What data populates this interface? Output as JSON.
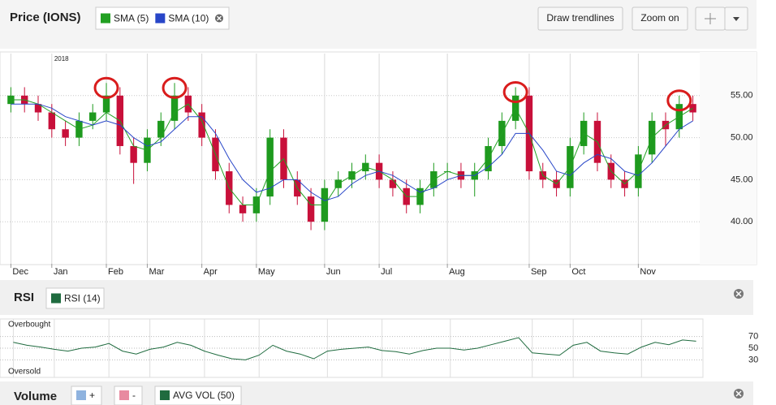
{
  "chart_data": [
    {
      "type": "candlestick",
      "title": "Price (IONS)",
      "year_label": "2018",
      "x": [
        0,
        1,
        2,
        3,
        4,
        5,
        6,
        7,
        8,
        9,
        10,
        11,
        12,
        13,
        14,
        15,
        16,
        17,
        18,
        19,
        20,
        21,
        22,
        23,
        24,
        25,
        26,
        27,
        28,
        29,
        30,
        31,
        32,
        33,
        34,
        35,
        36,
        37,
        38,
        39,
        40,
        41,
        42,
        43,
        44,
        45,
        46,
        47,
        48,
        49,
        50
      ],
      "open": [
        54,
        55,
        54,
        53,
        51,
        50,
        52,
        53,
        55,
        49,
        47,
        50,
        52,
        55,
        53,
        50,
        46,
        42,
        41,
        43,
        50,
        45,
        43,
        40,
        44,
        45,
        46,
        47,
        45,
        44,
        42,
        44,
        46,
        46,
        45,
        46,
        49,
        52,
        55,
        46,
        45,
        44,
        49,
        52,
        47,
        45,
        44,
        48,
        52,
        51,
        54
      ],
      "high": [
        56,
        56,
        55,
        54,
        52,
        53,
        54,
        56.5,
        56,
        50,
        51,
        53,
        56.5,
        56,
        54,
        51,
        47,
        43,
        44,
        51,
        51,
        46,
        44,
        45,
        46,
        47,
        48,
        48,
        46,
        45,
        45,
        47,
        47,
        47,
        47,
        50,
        53,
        56,
        56,
        47,
        46,
        50,
        53,
        53,
        48,
        46,
        49,
        53,
        53,
        55,
        55
      ],
      "low": [
        53,
        53,
        52,
        50,
        49,
        49,
        51,
        52,
        48,
        44.5,
        46,
        49,
        51,
        52,
        49,
        45,
        41,
        40,
        40,
        42,
        44,
        42,
        39,
        39,
        43,
        44,
        45,
        44,
        43,
        41,
        41,
        43,
        45,
        44,
        43,
        45,
        48,
        51,
        45,
        44,
        43,
        43,
        48,
        46,
        44,
        43,
        43,
        47,
        49,
        50,
        52
      ],
      "close": [
        55,
        54,
        53,
        51,
        50,
        52,
        53,
        55,
        49,
        47,
        50,
        52,
        55,
        53,
        50,
        46,
        42,
        41,
        43,
        50,
        45,
        43,
        40,
        44,
        45,
        46,
        47,
        45,
        44,
        42,
        44,
        46,
        46,
        45,
        46,
        49,
        52,
        55,
        46,
        45,
        44,
        49,
        52,
        47,
        45,
        44,
        48,
        52,
        51,
        54,
        53
      ],
      "up_color": "#1e9a1e",
      "down_color": "#c8103a",
      "series": [
        {
          "name": "SMA (5)",
          "color": "#22a022",
          "values": [
            54.5,
            54.5,
            54,
            53,
            52,
            51,
            51.5,
            53,
            52,
            49,
            48.5,
            50,
            53,
            54,
            52,
            48,
            44,
            42,
            42,
            46,
            47.5,
            44,
            42,
            42,
            44.5,
            45.5,
            46.5,
            46,
            45,
            43,
            43,
            45,
            46,
            45.5,
            45.5,
            47.5,
            50.5,
            53.5,
            50.5,
            45.5,
            44.5,
            46.5,
            50.5,
            49.5,
            46,
            44.5,
            46,
            50,
            51.5,
            52.5,
            53.5
          ]
        },
        {
          "name": "SMA (10)",
          "color": "#2846c8",
          "values": [
            54,
            54,
            54,
            53.5,
            52.5,
            52,
            51.5,
            52,
            51.5,
            50,
            49,
            49.5,
            51,
            52.5,
            52.5,
            50.5,
            47.5,
            45,
            43.5,
            44,
            45,
            45,
            43.5,
            42.5,
            43,
            44.5,
            45.5,
            46,
            45.5,
            44.5,
            43.5,
            44,
            45,
            45.5,
            45.5,
            46.5,
            48,
            50.5,
            50.5,
            48.5,
            46,
            45.5,
            47,
            48,
            47.5,
            46,
            45.5,
            47,
            49,
            51,
            52
          ]
        }
      ],
      "xlim": [
        -0.5,
        50.5
      ],
      "xticks": [
        {
          "value": 0,
          "label": "Dec"
        },
        {
          "value": 3,
          "label": "Jan"
        },
        {
          "value": 7,
          "label": "Feb"
        },
        {
          "value": 10,
          "label": "Mar"
        },
        {
          "value": 14,
          "label": "Apr"
        },
        {
          "value": 18,
          "label": "May"
        },
        {
          "value": 23,
          "label": "Jun"
        },
        {
          "value": 27,
          "label": "Jul"
        },
        {
          "value": 32,
          "label": "Aug"
        },
        {
          "value": 38,
          "label": "Sep"
        },
        {
          "value": 41,
          "label": "Oct"
        },
        {
          "value": 46,
          "label": "Nov"
        }
      ],
      "ylim": [
        35,
        60
      ],
      "yticks": [
        {
          "value": 40,
          "label": "40.00"
        },
        {
          "value": 45,
          "label": "45.00"
        },
        {
          "value": 50,
          "label": "50.00"
        },
        {
          "value": 55,
          "label": "55.00"
        }
      ],
      "grid": true,
      "circled": [
        7,
        12,
        37,
        49
      ],
      "circle_color": "#d91c1c"
    },
    {
      "type": "line",
      "title": "RSI",
      "series": [
        {
          "name": "RSI (14)",
          "color": "#1f6b3f",
          "values": [
            60,
            55,
            52,
            48,
            45,
            50,
            52,
            58,
            45,
            40,
            48,
            52,
            60,
            55,
            45,
            38,
            32,
            30,
            38,
            55,
            45,
            40,
            32,
            45,
            48,
            50,
            52,
            46,
            44,
            40,
            46,
            50,
            50,
            47,
            50,
            56,
            62,
            68,
            42,
            40,
            38,
            55,
            60,
            45,
            42,
            40,
            52,
            60,
            56,
            64,
            62
          ]
        }
      ],
      "ylim": [
        0,
        100
      ],
      "yticks": [
        70,
        50,
        30
      ],
      "annotations": [
        "Overbought",
        "Oversold"
      ]
    }
  ],
  "toolbar": {
    "buttons": [
      "Draw trendlines",
      "Zoom on"
    ]
  },
  "volume_panel": {
    "title": "Volume",
    "legend": [
      {
        "name": "+",
        "color": "#8fb3df"
      },
      {
        "name": "-",
        "color": "#e88aa0"
      },
      {
        "name": "AVG VOL (50)",
        "color": "#1f6b3f"
      }
    ]
  }
}
